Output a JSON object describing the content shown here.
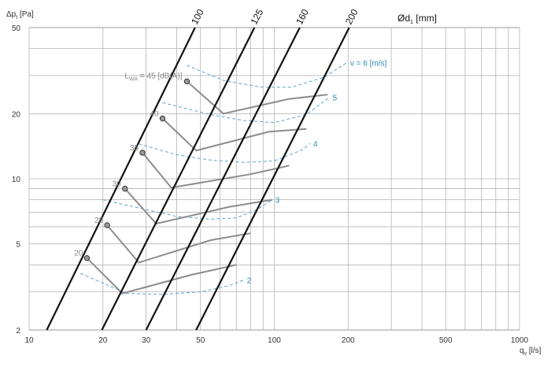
{
  "chart_data": {
    "type": "line",
    "x_axis": {
      "label": "q",
      "label_sub": "v",
      "unit": "[l/s]",
      "scale": "log",
      "range": [
        10,
        1000
      ],
      "ticks": [
        10,
        20,
        30,
        50,
        100,
        200,
        500,
        1000
      ],
      "tick_labels": [
        "10",
        "20",
        "30",
        "50",
        "100",
        "200",
        "500",
        "1000"
      ],
      "minor_gridlines": [
        40,
        60,
        70,
        80,
        90,
        300,
        400,
        600,
        700,
        800,
        900
      ]
    },
    "y_axis": {
      "label": "Δp",
      "label_sub": "t",
      "unit": "[Pa]",
      "scale": "log",
      "range": [
        2,
        50
      ],
      "ticks": [
        2,
        5,
        10,
        20,
        50
      ],
      "tick_labels": [
        "2",
        "5",
        "10",
        "20",
        "50"
      ],
      "minor_gridlines": [
        3,
        4,
        6,
        7,
        8,
        9,
        30,
        40
      ]
    },
    "grid": true,
    "diameter_title": "Ød",
    "diameter_title_sub": "1",
    "diameter_unit": "[mm]",
    "diameter_lines": [
      {
        "name": "100",
        "points": [
          [
            11.8,
            2
          ],
          [
            47.5,
            50
          ]
        ]
      },
      {
        "name": "125",
        "points": [
          [
            19.8,
            2
          ],
          [
            83,
            50
          ]
        ]
      },
      {
        "name": "160",
        "points": [
          [
            30,
            2
          ],
          [
            127,
            50
          ]
        ]
      },
      {
        "name": "200",
        "points": [
          [
            48,
            2
          ],
          [
            202,
            50
          ]
        ]
      }
    ],
    "velocity_title_prefix": "v = ",
    "velocity_unit": "[m/s]",
    "velocity_curves": [
      {
        "name": "6",
        "points": [
          [
            44,
            33.5
          ],
          [
            62,
            28.5
          ],
          [
            88,
            26.5
          ],
          [
            118,
            26.5
          ],
          [
            160,
            29.5
          ],
          [
            198,
            34.5
          ]
        ]
      },
      {
        "name": "5",
        "points": [
          [
            35,
            22.5
          ],
          [
            55,
            19.8
          ],
          [
            75,
            18.6
          ],
          [
            100,
            18.2
          ],
          [
            135,
            19.8
          ],
          [
            168,
            23.8
          ]
        ]
      },
      {
        "name": "4",
        "points": [
          [
            28,
            14.5
          ],
          [
            40,
            12.9
          ],
          [
            55,
            12.2
          ],
          [
            75,
            11.9
          ],
          [
            100,
            12.1
          ],
          [
            130,
            13.6
          ],
          [
            140,
            14.6
          ]
        ]
      },
      {
        "name": "3",
        "points": [
          [
            20,
            8.0
          ],
          [
            30,
            7.2
          ],
          [
            40,
            6.7
          ],
          [
            55,
            6.5
          ],
          [
            70,
            6.6
          ],
          [
            85,
            7.2
          ],
          [
            98,
            8.0
          ]
        ]
      },
      {
        "name": "2",
        "points": [
          [
            16.2,
            3.65
          ],
          [
            25,
            2.95
          ],
          [
            35,
            2.92
          ],
          [
            50,
            3.0
          ],
          [
            65,
            3.2
          ],
          [
            75,
            3.4
          ]
        ]
      }
    ],
    "sound_lines_title": "L",
    "sound_lines_title_sub": "WA",
    "sound_lines_unit": "[dB(A)]",
    "sound_lines": [
      {
        "name": "45",
        "points": [
          [
            44,
            28.2
          ],
          [
            62,
            20
          ],
          [
            115,
            23.4
          ],
          [
            165,
            24.5
          ]
        ]
      },
      {
        "name": "40",
        "points": [
          [
            35,
            19
          ],
          [
            48,
            13.5
          ],
          [
            95,
            16.5
          ],
          [
            135,
            17
          ]
        ]
      },
      {
        "name": "35",
        "points": [
          [
            29,
            13.2
          ],
          [
            38,
            9.1
          ],
          [
            80,
            10.5
          ],
          [
            115,
            11.5
          ]
        ]
      },
      {
        "name": "30",
        "points": [
          [
            24.6,
            9.0
          ],
          [
            33,
            6.2
          ],
          [
            65,
            7.4
          ],
          [
            98,
            8
          ]
        ]
      },
      {
        "name": "25",
        "points": [
          [
            20.8,
            6.1
          ],
          [
            28,
            4.1
          ],
          [
            55,
            5.2
          ],
          [
            80,
            5.6
          ]
        ]
      },
      {
        "name": "20",
        "points": [
          [
            17.2,
            4.3
          ],
          [
            24,
            2.95
          ],
          [
            46,
            3.6
          ],
          [
            70,
            4.0
          ]
        ]
      }
    ]
  }
}
